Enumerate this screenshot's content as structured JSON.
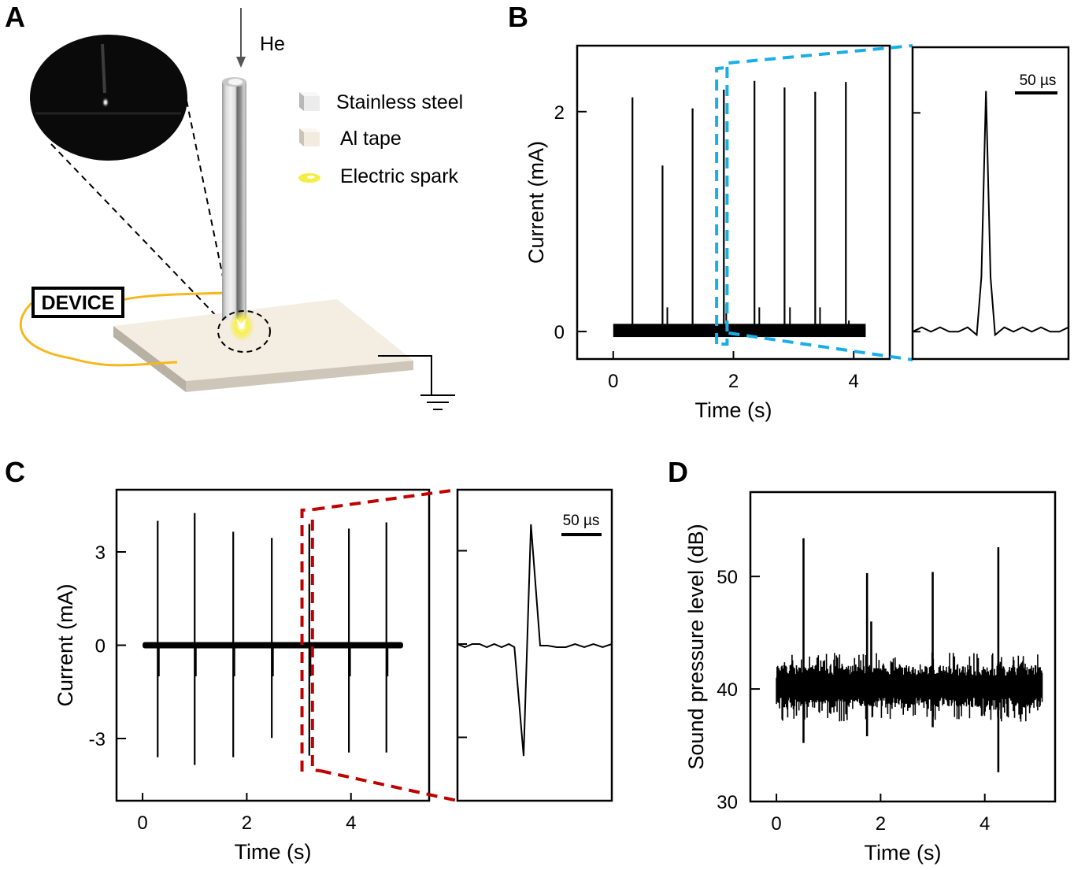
{
  "panels": {
    "A": {
      "letter": "A",
      "gas_label": "He",
      "device_label": "DEVICE",
      "legend": [
        {
          "label": "Stainless steel",
          "icon": "steel-cube-icon",
          "color": "#e6e6e6"
        },
        {
          "label": "Al tape",
          "icon": "tape-cube-icon",
          "color": "#f2ebe0"
        },
        {
          "label": "Electric spark",
          "icon": "spark-icon",
          "color": "#f2ea2a"
        }
      ],
      "colors": {
        "wire": "#f5b81c",
        "tape": "#f4ede2",
        "tape_edge": "#cfc6ba",
        "spark": "#f3ec2c"
      }
    },
    "B": {
      "letter": "B"
    },
    "C": {
      "letter": "C"
    },
    "D": {
      "letter": "D"
    }
  },
  "chart_data": [
    {
      "id": "B-main",
      "type": "line",
      "title": "",
      "xlabel": "Time (s)",
      "ylabel": "Current (mA)",
      "xlim": [
        -0.6,
        4.6
      ],
      "ylim": [
        -0.25,
        2.6
      ],
      "xticks": [
        0,
        2,
        4
      ],
      "xtick_labels": [
        "0",
        "2",
        "4"
      ],
      "yticks": [
        0,
        2
      ],
      "ytick_labels": [
        "0",
        "2"
      ],
      "grid": false,
      "baseline": {
        "x_start": 0,
        "x_end": 4.2,
        "noise_band": [
          -0.05,
          0.07
        ]
      },
      "spikes": [
        {
          "t": 0.32,
          "peak": 2.13
        },
        {
          "t": 0.82,
          "peak": 1.51
        },
        {
          "t": 1.32,
          "peak": 2.03
        },
        {
          "t": 1.84,
          "peak": 2.2
        },
        {
          "t": 2.35,
          "peak": 2.28
        },
        {
          "t": 2.85,
          "peak": 2.22
        },
        {
          "t": 3.36,
          "peak": 2.18
        },
        {
          "t": 3.87,
          "peak": 2.27
        }
      ],
      "secondary_spikes": [
        {
          "t": 0.9,
          "peak": 0.22
        },
        {
          "t": 1.88,
          "peak": 0.25
        },
        {
          "t": 2.43,
          "peak": 0.22
        },
        {
          "t": 2.94,
          "peak": 0.22
        },
        {
          "t": 3.44,
          "peak": 0.22
        },
        {
          "t": 3.92,
          "peak": 0.1
        }
      ],
      "zoom_box": {
        "t_start": 1.72,
        "t_end": 1.92,
        "color": "#1aaee6",
        "style": "dashed"
      }
    },
    {
      "id": "B-inset",
      "type": "line",
      "xlabel": "",
      "ylabel": "",
      "scale_bar": "50 µs",
      "yticks": [
        0,
        2
      ],
      "ylim": [
        -0.25,
        2.6
      ],
      "x_us": [
        0,
        10,
        20,
        30,
        40,
        50,
        60,
        70,
        75,
        80,
        85,
        90,
        100,
        110,
        120,
        130,
        140,
        150,
        160,
        170
      ],
      "values": [
        0,
        0.04,
        0,
        0.04,
        0,
        0,
        0.04,
        -0.03,
        0.5,
        2.2,
        0.5,
        -0.03,
        0.04,
        0,
        0.04,
        0,
        0.04,
        0,
        0,
        0.04
      ],
      "peak_value": 2.2
    },
    {
      "id": "C-main",
      "type": "line",
      "title": "",
      "xlabel": "Time (s)",
      "ylabel": "Current (mA)",
      "xlim": [
        -0.5,
        5.5
      ],
      "ylim": [
        -5.0,
        5.0
      ],
      "xticks": [
        0,
        2,
        4
      ],
      "xtick_labels": [
        "0",
        "2",
        "4"
      ],
      "yticks": [
        -3,
        0,
        3
      ],
      "ytick_labels": [
        "-3",
        "0",
        "3"
      ],
      "grid": false,
      "baseline": {
        "x_start": 0,
        "x_end": 5.0,
        "noise_band": [
          -0.1,
          0.1
        ]
      },
      "spikes": [
        {
          "t": 0.29,
          "max": 4.0,
          "min": -3.6
        },
        {
          "t": 1.0,
          "max": 4.25,
          "min": -3.85
        },
        {
          "t": 1.74,
          "max": 3.65,
          "min": -3.6
        },
        {
          "t": 2.48,
          "max": 3.45,
          "min": -2.98
        },
        {
          "t": 3.2,
          "max": 3.9,
          "min": -3.55
        },
        {
          "t": 3.96,
          "max": 3.75,
          "min": -3.45
        },
        {
          "t": 4.68,
          "max": 3.95,
          "min": -3.45
        }
      ],
      "zoom_box": {
        "t_start": 3.06,
        "t_end": 3.26,
        "color": "#c00000",
        "style": "dashed"
      }
    },
    {
      "id": "C-inset",
      "type": "line",
      "xlabel": "",
      "ylabel": "",
      "scale_bar": "50 µs",
      "yticks": [
        -3,
        0,
        3
      ],
      "ylim": [
        -5.0,
        5.0
      ],
      "x_us": [
        0,
        8,
        16,
        24,
        32,
        40,
        48,
        56,
        62,
        72,
        80,
        90,
        98,
        108,
        118,
        128,
        138,
        148,
        158,
        168
      ],
      "values": [
        0,
        -0.1,
        0,
        0,
        -0.1,
        0,
        -0.1,
        0,
        -0.1,
        -3.6,
        3.85,
        -0.05,
        -0.05,
        -0.1,
        -0.1,
        0,
        -0.1,
        0,
        -0.1,
        0
      ],
      "peak_value": 3.85,
      "trough_value": -3.6
    },
    {
      "id": "D",
      "type": "line",
      "title": "",
      "xlabel": "Time (s)",
      "ylabel": "Sound pressure level (dB)",
      "xlim": [
        -0.5,
        5.35
      ],
      "ylim": [
        30,
        57.5
      ],
      "xticks": [
        0,
        2,
        4
      ],
      "xtick_labels": [
        "0",
        "2",
        "4"
      ],
      "yticks": [
        30,
        40,
        50
      ],
      "ytick_labels": [
        "30",
        "40",
        "50"
      ],
      "grid": false,
      "baseline": {
        "x_start": 0,
        "x_end": 5.1,
        "mean": 40.2,
        "noise_band": [
          38.8,
          41.8
        ]
      },
      "spikes": [
        {
          "t": 0.52,
          "max": 53.4,
          "min": 35.2
        },
        {
          "t": 1.74,
          "max": 50.3,
          "min": 35.8
        },
        {
          "t": 1.82,
          "max": 46.0,
          "min": 38.5
        },
        {
          "t": 3.0,
          "max": 50.4,
          "min": 36.6
        },
        {
          "t": 4.26,
          "max": 52.6,
          "min": 32.6
        }
      ]
    }
  ]
}
